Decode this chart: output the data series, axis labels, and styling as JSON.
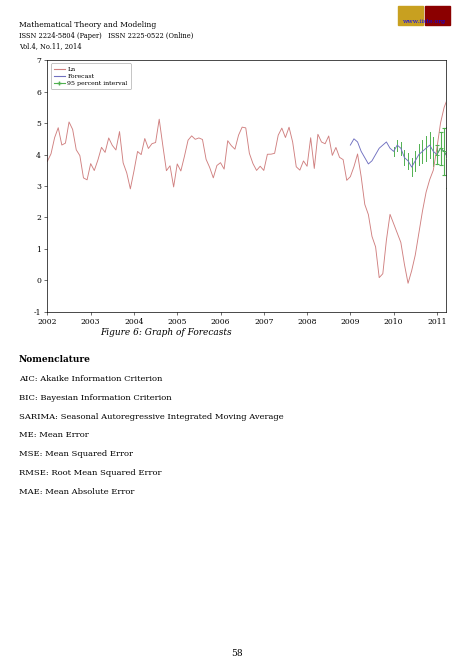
{
  "header_line1": "Mathematical Theory and Modeling",
  "header_line2": "ISSN 2224-5804 (Paper)   ISSN 2225-0522 (Online)",
  "header_line3": "Vol.4, No.11, 2014",
  "header_url": "www.iiste.org",
  "figure_caption": "Figure 6: Graph of Forecasts",
  "nomenclature_title": "Nomenclature",
  "nomenclature_items": [
    "AIC: Akaike Information Criterion",
    "BIC: Bayesian Information Criterion",
    "SARIMA: Seasonal Autoregressive Integrated Moving Average",
    "ME: Mean Error",
    "MSE: Mean Squared Error",
    "RMSE: Root Mean Squared Error",
    "MAE: Mean Absolute Error"
  ],
  "page_number": "58",
  "ylabel_ticks": [
    -1,
    0,
    1,
    2,
    3,
    4,
    5,
    6,
    7
  ],
  "xlabel_ticks": [
    "2002",
    "2003",
    "2004",
    "2005",
    "2006",
    "2007",
    "2008",
    "2009",
    "2010",
    "2011"
  ],
  "line_color_obs": "#D08080",
  "line_color_forecast": "#7070C0",
  "ci_color": "#50B050",
  "legend_labels": [
    "Ln",
    "Forecast",
    "95 percent interval"
  ],
  "background_color": "#ffffff"
}
